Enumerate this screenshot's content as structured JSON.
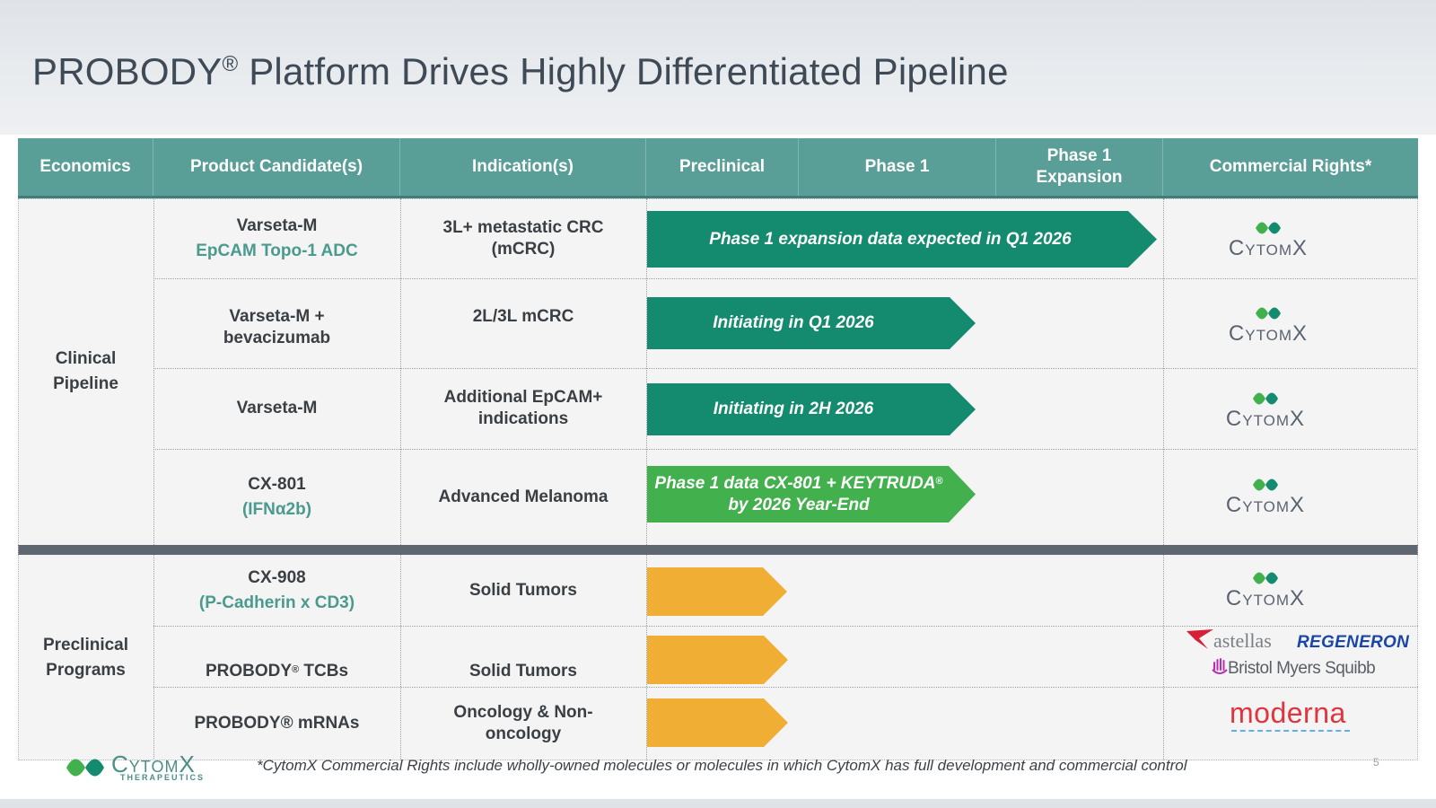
{
  "title": {
    "text": "PROBODY",
    "reg": "®",
    "rest": " Platform Drives Highly Differentiated Pipeline"
  },
  "table": {
    "headers": {
      "economics": "Economics",
      "product": "Product Candidate(s)",
      "indication": "Indication(s)",
      "preclinical": "Preclinical",
      "phase1": "Phase 1",
      "phase1_exp_line1": "Phase 1",
      "phase1_exp_line2": "Expansion",
      "rights": "Commercial Rights*"
    },
    "groups": {
      "clinical_line1": "Clinical",
      "clinical_line2": "Pipeline",
      "preclinical_line1": "Preclinical",
      "preclinical_line2": "Programs"
    },
    "rows": [
      {
        "product_line1": "Varseta-M",
        "product_line2": "EpCAM Topo-1 ADC",
        "indication_line1": "3L+ metastatic CRC",
        "indication_line2": "(mCRC)",
        "arrow_line1": "Phase 1 expansion data expected in Q1 2026"
      },
      {
        "product_line1": "Varseta-M  +",
        "product_line2": "bevacizumab",
        "indication_line1": "2L/3L mCRC",
        "arrow_line1": "Initiating in Q1 2026"
      },
      {
        "product_line1": "Varseta-M",
        "indication_line1": "Additional EpCAM+",
        "indication_line2": "indications",
        "arrow_line1": "Initiating in 2H 2026"
      },
      {
        "product_line1": "CX-801",
        "product_line2": "(IFNα2b)",
        "indication_line1": "Advanced Melanoma",
        "arrow_line1": "Phase 1 data CX-801 + KEYTRUDA",
        "arrow_reg": "®",
        "arrow_line2": "by 2026 Year-End"
      },
      {
        "product_line1": "CX-908",
        "product_line2": "(P-Cadherin x CD3)",
        "indication_line1": "Solid Tumors"
      },
      {
        "product_line1": "PROBODY",
        "product_reg": "®",
        "product_rest": " TCBs",
        "indication_line1": "Solid Tumors"
      },
      {
        "product_line1": "PROBODY® mRNAs",
        "indication_line1": "Oncology & Non-",
        "indication_line2": "oncology"
      }
    ],
    "rights": {
      "cytomx": "CytomX",
      "astellas": "astellas",
      "regeneron": "REGENERON",
      "bms": "Bristol Myers Squibb",
      "moderna": "moderna"
    }
  },
  "footer": {
    "logo_word": "CytomX",
    "logo_sub": "THERAPEUTICS",
    "note": "*CytomX Commercial Rights include wholly-owned molecules or molecules in which CytomX has full development and commercial control",
    "page_number": "5"
  },
  "colors": {
    "header_teal": "#5a9e98",
    "arrow_green": "#148b6e",
    "arrow_light_green": "#43b04e",
    "arrow_orange": "#f1ae35",
    "teal_text": "#4a9a8e"
  }
}
